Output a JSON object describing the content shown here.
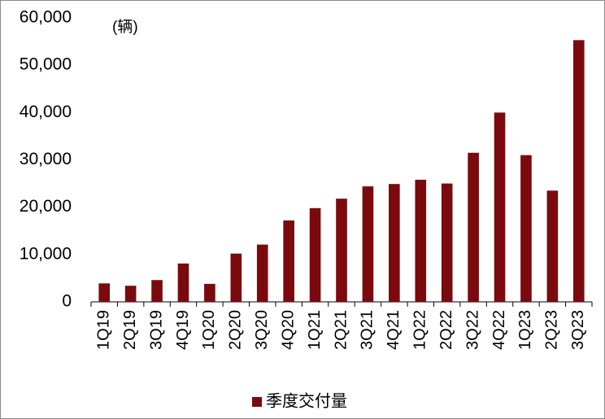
{
  "chart_data": {
    "type": "bar",
    "unit_label": "(辆)",
    "categories": [
      "1Q19",
      "2Q19",
      "3Q19",
      "4Q19",
      "1Q20",
      "2Q20",
      "3Q20",
      "4Q20",
      "1Q21",
      "2Q21",
      "3Q21",
      "4Q21",
      "1Q22",
      "2Q22",
      "3Q22",
      "4Q22",
      "1Q23",
      "2Q23",
      "3Q23"
    ],
    "series": [
      {
        "name": "季度交付量",
        "color": "#7a0a0e",
        "values": [
          3900,
          3400,
          4600,
          8100,
          3800,
          10200,
          12100,
          17200,
          19800,
          21800,
          24400,
          24900,
          25800,
          25000,
          31500,
          40000,
          31000,
          23500,
          55300
        ]
      }
    ],
    "ylim": [
      0,
      60000
    ],
    "yticks": [
      0,
      {
        "value": 10000,
        "label": "10,000"
      },
      {
        "value": 20000,
        "label": "20,000"
      },
      {
        "value": 30000,
        "label": "30,000"
      },
      {
        "value": 40000,
        "label": "40,000"
      },
      {
        "value": 50000,
        "label": "50,000"
      },
      {
        "value": 60000,
        "label": "60,000"
      }
    ],
    "legend": "bottom"
  }
}
